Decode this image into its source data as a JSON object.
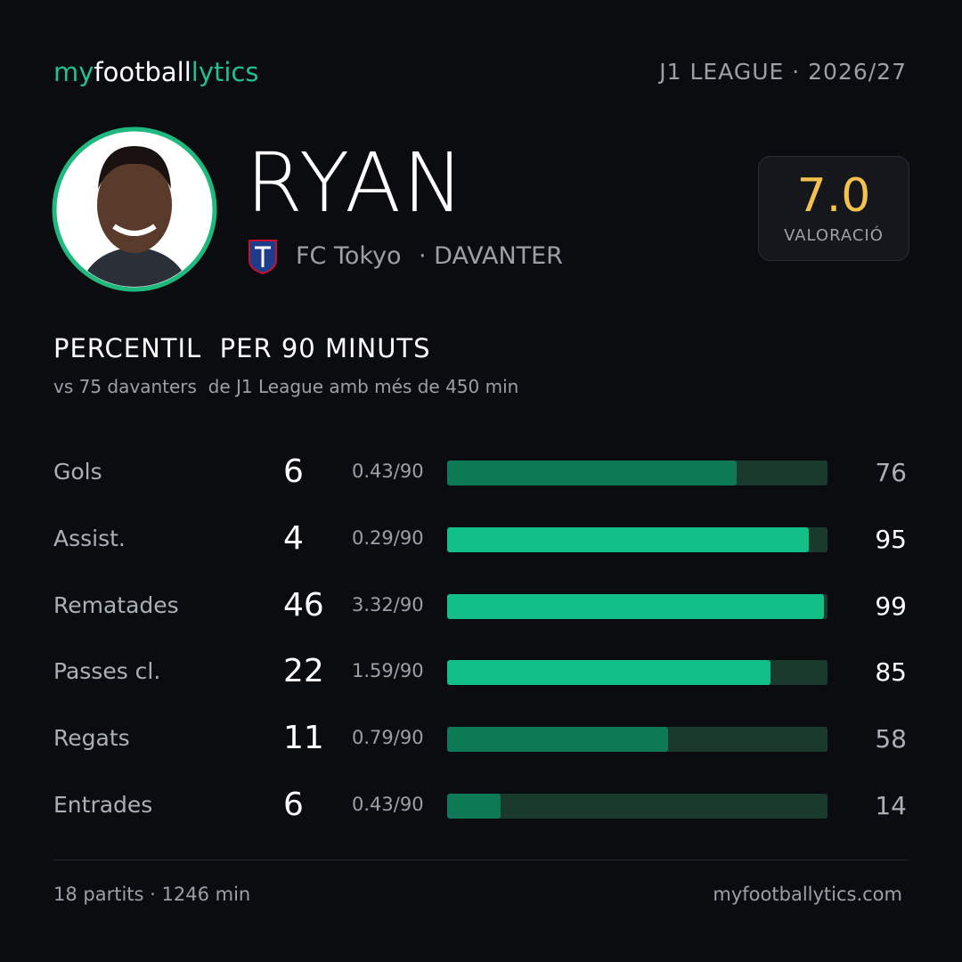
{
  "brand": {
    "parts": [
      "my",
      "football",
      "lytics"
    ],
    "colors": [
      "#22c08a",
      "#ffffff",
      "#22c08a"
    ]
  },
  "league": "J1 LEAGUE · 2026/27",
  "player": {
    "name": "RYAN",
    "team": "FC Tokyo",
    "position": "· DAVANTER"
  },
  "rating": {
    "value": "7.0",
    "label": "VALORACIÓ"
  },
  "section": {
    "title": "PERCENTIL  PER 90 MINUTS",
    "subtitle": "vs 75 davanters  de J1 League amb més de 450 min"
  },
  "stats": {
    "track_color": "#1a3a2c",
    "max": 100,
    "rows": [
      {
        "label": "Gols",
        "total": 6,
        "per90": "0.43/90",
        "percentile": 76,
        "color": "#0e7a55",
        "value_color": "#aab0b8"
      },
      {
        "label": "Assist.",
        "total": 4,
        "per90": "0.29/90",
        "percentile": 95,
        "color": "#12bf86",
        "value_color": "#ffffff"
      },
      {
        "label": "Rematades",
        "total": 46,
        "per90": "3.32/90",
        "percentile": 99,
        "color": "#12bf86",
        "value_color": "#ffffff"
      },
      {
        "label": "Passes cl.",
        "total": 22,
        "per90": "1.59/90",
        "percentile": 85,
        "color": "#12bf86",
        "value_color": "#ffffff"
      },
      {
        "label": "Regats",
        "total": 11,
        "per90": "0.79/90",
        "percentile": 58,
        "color": "#0e7a55",
        "value_color": "#aab0b8"
      },
      {
        "label": "Entrades",
        "total": 6,
        "per90": "0.43/90",
        "percentile": 14,
        "color": "#0e7a55",
        "value_color": "#aab0b8"
      }
    ]
  },
  "footer": {
    "left": "18 partits · 1246 min",
    "right": "myfootballytics.com"
  }
}
